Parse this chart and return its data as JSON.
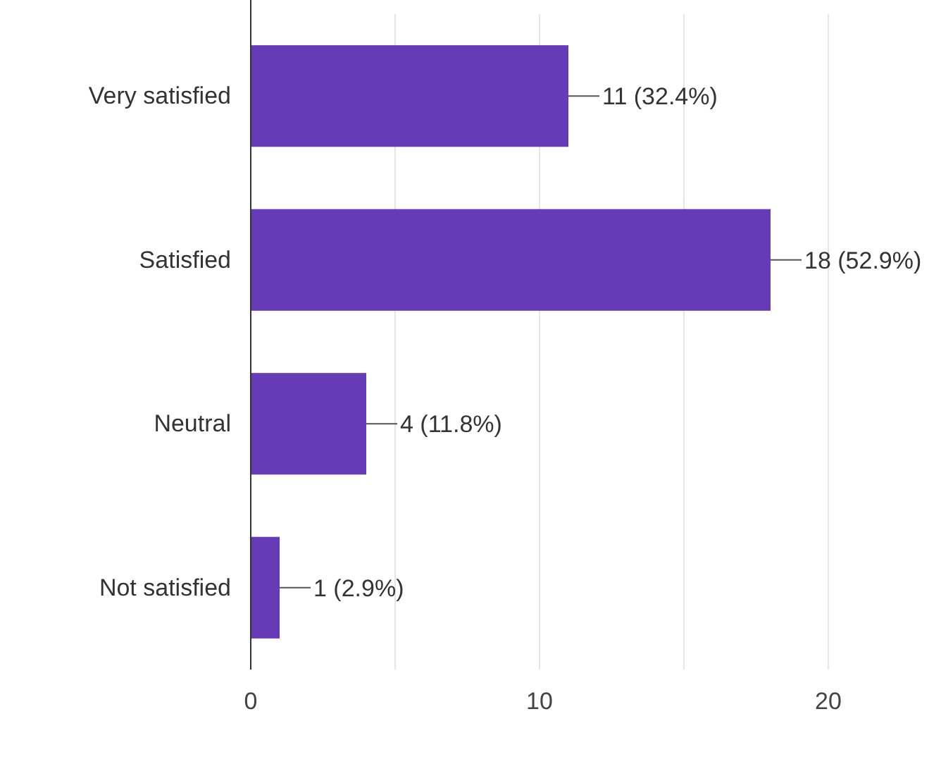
{
  "chart_data": {
    "type": "bar",
    "orientation": "horizontal",
    "categories": [
      "Very satisfied",
      "Satisfied",
      "Neutral",
      "Not satisfied"
    ],
    "values": [
      11,
      18,
      4,
      1
    ],
    "color": "#673ab7",
    "value_labels": [
      "11 (32.4%)",
      "18 (52.9%)",
      "4 (11.8%)",
      "1 (2.9%)"
    ],
    "xlim": [
      0,
      20
    ],
    "xticks": [
      0,
      {
        "value": 5,
        "label": null
      },
      10,
      {
        "value": 15,
        "label": null
      },
      20
    ],
    "grid": "x"
  }
}
